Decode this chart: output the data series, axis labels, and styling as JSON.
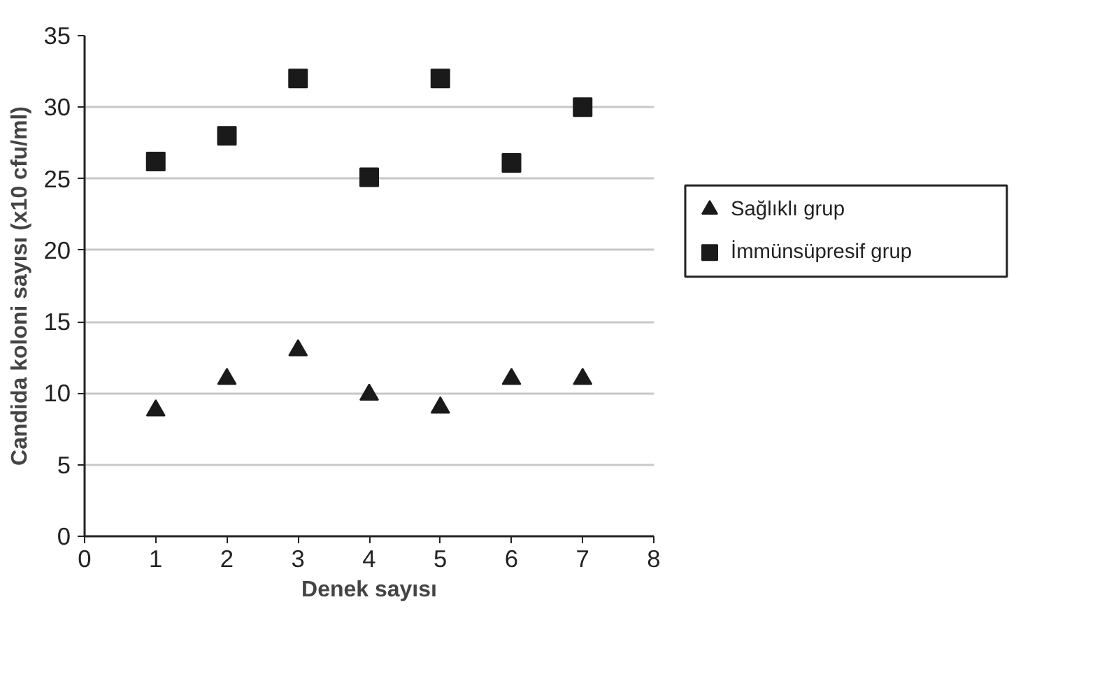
{
  "chart_data": {
    "type": "scatter",
    "xlabel": "Denek sayısı",
    "ylabel": "Candida koloni sayısı (x10 cfu/ml)",
    "x": [
      1,
      2,
      3,
      4,
      5,
      6,
      7
    ],
    "series": [
      {
        "name": "Sağlıklı grup",
        "color": "#1a1a1a",
        "marker": "triangle",
        "values": [
          8.8,
          11,
          13,
          9.9,
          9,
          11,
          11
        ]
      },
      {
        "name": "İmmünsüpresif grup",
        "color": "#1a1a1a",
        "marker": "square",
        "values": [
          26.2,
          28,
          32,
          25.1,
          32,
          26.1,
          30
        ]
      }
    ],
    "xlim": [
      0,
      8
    ],
    "xticks": [
      0,
      1,
      2,
      3,
      4,
      5,
      6,
      7,
      8
    ],
    "ylim": [
      0,
      35
    ],
    "yticks": [
      0,
      5,
      10,
      15,
      20,
      25,
      30,
      35
    ],
    "grid": "y",
    "legend": "right"
  }
}
